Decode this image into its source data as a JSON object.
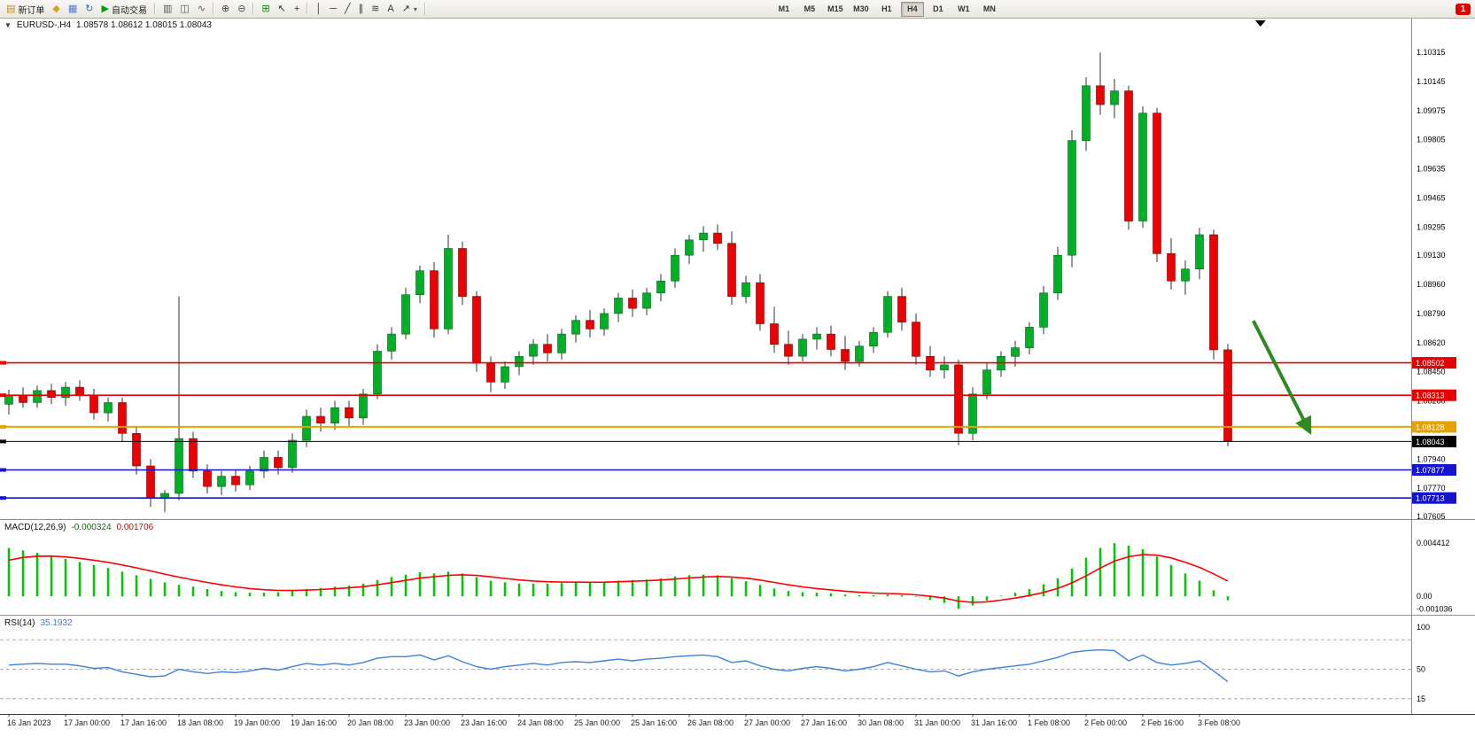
{
  "toolbar": {
    "new_order": {
      "label": "新订单",
      "icon": "order-ticket-icon",
      "glyph": "▤",
      "color": "#B98A2E"
    },
    "icon_buttons_1": [
      {
        "name": "metaeditor-button",
        "icon": "metaeditor-icon",
        "glyph": "◆",
        "color": "#D9A11C"
      },
      {
        "name": "print-button",
        "icon": "print-icon",
        "glyph": "▦",
        "color": "#5577C9"
      },
      {
        "name": "refresh-button",
        "icon": "refresh-icon",
        "glyph": "↻",
        "color": "#2A6FC0"
      }
    ],
    "autotrading": {
      "label": "自动交易",
      "icon": "play-icon",
      "glyph": "▶",
      "color": "#00A000"
    },
    "chart_type_buttons": [
      {
        "name": "bars-chart-button",
        "icon": "bars-chart-icon",
        "glyph": "▥",
        "color": "#555555"
      },
      {
        "name": "candles-chart-button",
        "icon": "candles-chart-icon",
        "glyph": "◫",
        "color": "#555555"
      },
      {
        "name": "line-chart-button",
        "icon": "line-chart-icon",
        "glyph": "∿",
        "color": "#555555"
      }
    ],
    "zoom_buttons": [
      {
        "name": "zoom-in-button",
        "icon": "zoom-in-icon",
        "glyph": "⊕",
        "color": "#444444"
      },
      {
        "name": "zoom-out-button",
        "icon": "zoom-out-icon",
        "glyph": "⊖",
        "color": "#444444"
      }
    ],
    "indicator_button": {
      "name": "indicators-button",
      "icon": "indicators-icon",
      "glyph": "⊞",
      "color": "#0A8F0A"
    },
    "cursor_buttons": [
      {
        "name": "cursor-button",
        "icon": "cursor-icon",
        "glyph": "↖",
        "color": "#333333"
      },
      {
        "name": "crosshair-button",
        "icon": "crosshair-icon",
        "glyph": "+",
        "color": "#333333"
      }
    ],
    "drawing_buttons": [
      {
        "name": "vertical-line-button",
        "icon": "vertical-line-icon",
        "glyph": "│",
        "color": "#333333"
      },
      {
        "name": "horizontal-line-button",
        "icon": "horizontal-line-icon",
        "glyph": "─",
        "color": "#333333"
      },
      {
        "name": "trendline-button",
        "icon": "trendline-icon",
        "glyph": "╱",
        "color": "#333333"
      },
      {
        "name": "channel-button",
        "icon": "equidistant-channel-icon",
        "glyph": "∥",
        "color": "#333333"
      },
      {
        "name": "fibonacci-button",
        "icon": "fibonacci-icon",
        "glyph": "≋",
        "color": "#333333"
      },
      {
        "name": "text-button",
        "icon": "text-label-icon",
        "glyph": "A",
        "color": "#333333"
      },
      {
        "name": "arrows-button",
        "icon": "arrow-objects-icon",
        "glyph": "↗",
        "color": "#333333",
        "dropdown": true
      }
    ],
    "timeframes": [
      "M1",
      "M5",
      "M15",
      "M30",
      "H1",
      "H4",
      "D1",
      "W1",
      "MN"
    ],
    "active_timeframe": "H4",
    "notification_badge": "1"
  },
  "chart_data": {
    "price": {
      "type": "candlestick",
      "symbol": "EURUSD-,H4",
      "ohlc_text": "1.08578 1.08612 1.08015 1.08043",
      "one_click_glyph": "▼",
      "up_color": "#00AF23",
      "down_color": "#EC0000",
      "ylim": [
        1.07595,
        1.10517
      ],
      "y_axis_labels": [
        "1.10315",
        "1.10145",
        "1.09975",
        "1.09805",
        "1.09635",
        "1.09465",
        "1.09295",
        "1.09130",
        "1.08960",
        "1.08790",
        "1.08620",
        "1.08450",
        "1.08280",
        "1.08110",
        "1.07940",
        "1.07770",
        "1.07605"
      ],
      "hlines": [
        {
          "price": 1.08502,
          "label": "1.08502",
          "color": "#E60000",
          "width": 1.6
        },
        {
          "price": 1.08313,
          "label": "1.08313",
          "color": "#E60000",
          "width": 1.6
        },
        {
          "price": 1.08128,
          "label": "1.08128",
          "color": "#E8A200",
          "width": 2
        },
        {
          "price": 1.08043,
          "label": "1.08043",
          "color": "#000000",
          "width": 1,
          "current": true
        },
        {
          "price": 1.07877,
          "label": "1.07877",
          "color": "#1414CC",
          "width": 1.6
        },
        {
          "price": 1.07713,
          "label": "1.07713",
          "color": "#1414CC",
          "width": 1.6
        }
      ],
      "annotation_arrow": {
        "from": {
          "bar": 87.8,
          "price": 1.08748
        },
        "to": {
          "bar": 91.8,
          "price": 1.08096
        },
        "color": "#2E8B22"
      },
      "shift_marker_bar": 88.3,
      "ohlc": [
        [
          1.0826,
          1.08345,
          1.082,
          1.0831
        ],
        [
          1.0831,
          1.0836,
          1.0824,
          1.0827
        ],
        [
          1.0827,
          1.0837,
          1.0824,
          1.0834
        ],
        [
          1.0834,
          1.0838,
          1.0826,
          1.083
        ],
        [
          1.083,
          1.0839,
          1.0825,
          1.0836
        ],
        [
          1.0836,
          1.084,
          1.0828,
          1.0831
        ],
        [
          1.0831,
          1.0835,
          1.0817,
          1.0821
        ],
        [
          1.0821,
          1.083,
          1.0816,
          1.0827
        ],
        [
          1.0827,
          1.083,
          1.0804,
          1.0809
        ],
        [
          1.0809,
          1.0813,
          1.0785,
          1.079
        ],
        [
          1.079,
          1.0794,
          1.0766,
          1.0771
        ],
        [
          1.0771,
          1.0776,
          1.0763,
          1.0774
        ],
        [
          1.0774,
          1.0889,
          1.077,
          1.0806
        ],
        [
          1.0806,
          1.081,
          1.0783,
          1.0787
        ],
        [
          1.0787,
          1.0791,
          1.0774,
          1.0778
        ],
        [
          1.0778,
          1.0787,
          1.0773,
          1.0784
        ],
        [
          1.0784,
          1.0788,
          1.0775,
          1.0779
        ],
        [
          1.0779,
          1.079,
          1.0776,
          1.0787
        ],
        [
          1.0787,
          1.0799,
          1.0783,
          1.0795
        ],
        [
          1.0795,
          1.0799,
          1.0785,
          1.0789
        ],
        [
          1.0789,
          1.0809,
          1.0786,
          1.0805
        ],
        [
          1.0805,
          1.0823,
          1.0801,
          1.0819
        ],
        [
          1.0819,
          1.0824,
          1.081,
          1.0815
        ],
        [
          1.0815,
          1.0828,
          1.0811,
          1.0824
        ],
        [
          1.0824,
          1.0828,
          1.0813,
          1.0818
        ],
        [
          1.0818,
          1.0835,
          1.0814,
          1.0832
        ],
        [
          1.0832,
          1.0861,
          1.0829,
          1.0857
        ],
        [
          1.0857,
          1.0871,
          1.0852,
          1.0867
        ],
        [
          1.0867,
          1.0894,
          1.0864,
          1.089
        ],
        [
          1.089,
          1.0907,
          1.0885,
          1.0904
        ],
        [
          1.0904,
          1.0909,
          1.0865,
          1.087
        ],
        [
          1.087,
          1.0925,
          1.0867,
          1.0917
        ],
        [
          1.0917,
          1.0921,
          1.0884,
          1.0889
        ],
        [
          1.0889,
          1.0892,
          1.0845,
          1.085
        ],
        [
          1.085,
          1.0854,
          1.0833,
          1.0839
        ],
        [
          1.0839,
          1.0851,
          1.0835,
          1.0848
        ],
        [
          1.0848,
          1.0857,
          1.0843,
          1.0854
        ],
        [
          1.0854,
          1.0864,
          1.0849,
          1.0861
        ],
        [
          1.0861,
          1.0867,
          1.0851,
          1.0856
        ],
        [
          1.0856,
          1.087,
          1.0852,
          1.0867
        ],
        [
          1.0867,
          1.0878,
          1.0862,
          1.0875
        ],
        [
          1.0875,
          1.0881,
          1.0865,
          1.087
        ],
        [
          1.087,
          1.0882,
          1.0866,
          1.0879
        ],
        [
          1.0879,
          1.0891,
          1.0874,
          1.0888
        ],
        [
          1.0888,
          1.0893,
          1.0877,
          1.0882
        ],
        [
          1.0882,
          1.0894,
          1.0878,
          1.0891
        ],
        [
          1.0891,
          1.0902,
          1.0886,
          1.0898
        ],
        [
          1.0898,
          1.0917,
          1.0894,
          1.0913
        ],
        [
          1.0913,
          1.0925,
          1.0908,
          1.0922
        ],
        [
          1.0922,
          1.093,
          1.0915,
          1.0926
        ],
        [
          1.0926,
          1.0931,
          1.0916,
          1.092
        ],
        [
          1.092,
          1.0927,
          1.0884,
          1.0889
        ],
        [
          1.0889,
          1.0901,
          1.0885,
          1.0897
        ],
        [
          1.0897,
          1.0902,
          1.0869,
          1.0873
        ],
        [
          1.0873,
          1.0883,
          1.0856,
          1.0861
        ],
        [
          1.0861,
          1.0869,
          1.0849,
          1.0854
        ],
        [
          1.0854,
          1.0867,
          1.0851,
          1.0864
        ],
        [
          1.0864,
          1.0871,
          1.0858,
          1.0867
        ],
        [
          1.0867,
          1.0872,
          1.0854,
          1.0858
        ],
        [
          1.0858,
          1.0866,
          1.0846,
          1.0851
        ],
        [
          1.0851,
          1.0863,
          1.0848,
          1.086
        ],
        [
          1.086,
          1.0871,
          1.0856,
          1.0868
        ],
        [
          1.0868,
          1.0892,
          1.0865,
          1.0889
        ],
        [
          1.0889,
          1.0894,
          1.0869,
          1.0874
        ],
        [
          1.0874,
          1.0879,
          1.0849,
          1.0854
        ],
        [
          1.0854,
          1.086,
          1.0842,
          1.0846
        ],
        [
          1.0846,
          1.0854,
          1.0841,
          1.0849
        ],
        [
          1.0849,
          1.0852,
          1.0802,
          1.0809
        ],
        [
          1.0809,
          1.0836,
          1.0805,
          1.0832
        ],
        [
          1.0832,
          1.085,
          1.0829,
          1.0846
        ],
        [
          1.0846,
          1.0857,
          1.0842,
          1.0854
        ],
        [
          1.0854,
          1.0863,
          1.0848,
          1.0859
        ],
        [
          1.0859,
          1.0874,
          1.0855,
          1.0871
        ],
        [
          1.0871,
          1.0895,
          1.0867,
          1.0891
        ],
        [
          1.0891,
          1.0918,
          1.0887,
          1.0913
        ],
        [
          1.0913,
          1.0986,
          1.0906,
          1.098
        ],
        [
          1.098,
          1.1017,
          1.0974,
          1.1012
        ],
        [
          1.1012,
          1.10315,
          1.0995,
          1.1001
        ],
        [
          1.1001,
          1.1016,
          1.0993,
          1.1009
        ],
        [
          1.1009,
          1.1012,
          1.0928,
          1.0933
        ],
        [
          1.0933,
          1.1,
          1.0929,
          1.0996
        ],
        [
          1.0996,
          1.0999,
          1.0909,
          1.0914
        ],
        [
          1.0914,
          1.0923,
          1.0893,
          1.0898
        ],
        [
          1.0898,
          1.091,
          1.089,
          1.0905
        ],
        [
          1.0905,
          1.0929,
          1.0899,
          1.0925
        ],
        [
          1.0925,
          1.0928,
          1.0852,
          1.08578
        ],
        [
          1.08578,
          1.08612,
          1.08015,
          1.08043
        ]
      ]
    },
    "macd": {
      "type": "bar",
      "label": "MACD(12,26,9)",
      "main_value": "-0.000324",
      "signal_value": "0.001706",
      "ylim": [
        -0.00145,
        0.00625
      ],
      "scale_labels": [
        {
          "v": 0.004412,
          "t": "0.004412"
        },
        {
          "v": 0,
          "t": "0.00"
        },
        {
          "v": -0.001036,
          "t": "-0.001036"
        }
      ],
      "signal_seed": 0.0026,
      "signal_alpha": 0.28,
      "values": [
        0.004,
        0.0038,
        0.0036,
        0.00335,
        0.0031,
        0.00285,
        0.0026,
        0.00235,
        0.00205,
        0.00175,
        0.00145,
        0.00115,
        0.00095,
        0.0008,
        0.0006,
        0.00045,
        0.00035,
        0.0003,
        0.0003,
        0.00035,
        0.00045,
        0.0006,
        0.0007,
        0.0008,
        0.0009,
        0.00105,
        0.00135,
        0.0016,
        0.0018,
        0.002,
        0.0019,
        0.00205,
        0.0019,
        0.0016,
        0.0013,
        0.00115,
        0.00105,
        0.00105,
        0.00105,
        0.0011,
        0.00115,
        0.00115,
        0.0012,
        0.0013,
        0.00135,
        0.0014,
        0.0015,
        0.00165,
        0.00175,
        0.0018,
        0.00175,
        0.0015,
        0.00125,
        0.00095,
        0.00065,
        0.00045,
        0.00035,
        0.0003,
        0.00025,
        0.00015,
        0.0001,
        0.0001,
        0.00015,
        0.0001,
        -5e-05,
        -0.0003,
        -0.00055,
        -0.001036,
        -0.00075,
        -0.00035,
        5e-05,
        0.0003,
        0.0006,
        0.001,
        0.0015,
        0.0023,
        0.0032,
        0.004,
        0.004412,
        0.0042,
        0.0039,
        0.0033,
        0.0026,
        0.0019,
        0.0013,
        0.0005,
        -0.000324
      ]
    },
    "rsi": {
      "type": "line",
      "label": "RSI(14)",
      "value": "35.1932",
      "ylim": [
        0,
        100
      ],
      "levels": [
        85,
        50,
        15
      ],
      "scale_labels": [
        {
          "v": 100,
          "t": "100"
        },
        {
          "v": 50,
          "t": "50"
        },
        {
          "v": 15,
          "t": "15"
        }
      ],
      "values": [
        55,
        56,
        57,
        56,
        56,
        54,
        51,
        52,
        47,
        44,
        41,
        42,
        50,
        47,
        45,
        47,
        46,
        48,
        51,
        49,
        53,
        57,
        55,
        57,
        55,
        58,
        63,
        65,
        65,
        67,
        61,
        66,
        59,
        53,
        50,
        53,
        55,
        57,
        55,
        58,
        59,
        58,
        60,
        62,
        60,
        62,
        63,
        65,
        66,
        67,
        65,
        58,
        60,
        54,
        50,
        48,
        51,
        53,
        51,
        48,
        50,
        53,
        58,
        54,
        50,
        47,
        48,
        42,
        47,
        50,
        52,
        54,
        56,
        60,
        64,
        70,
        72,
        73,
        72,
        60,
        67,
        58,
        55,
        57,
        60,
        48,
        35.19
      ]
    },
    "time_labels": [
      "16 Jan 2023",
      "17 Jan 00:00",
      "17 Jan 16:00",
      "18 Jan 08:00",
      "19 Jan 00:00",
      "19 Jan 16:00",
      "20 Jan 08:00",
      "23 Jan 00:00",
      "23 Jan 16:00",
      "24 Jan 08:00",
      "25 Jan 00:00",
      "25 Jan 16:00",
      "26 Jan 08:00",
      "27 Jan 00:00",
      "27 Jan 16:00",
      "30 Jan 08:00",
      "31 Jan 00:00",
      "31 Jan 16:00",
      "1 Feb 08:00",
      "2 Feb 00:00",
      "2 Feb 16:00",
      "3 Feb 08:00"
    ]
  }
}
